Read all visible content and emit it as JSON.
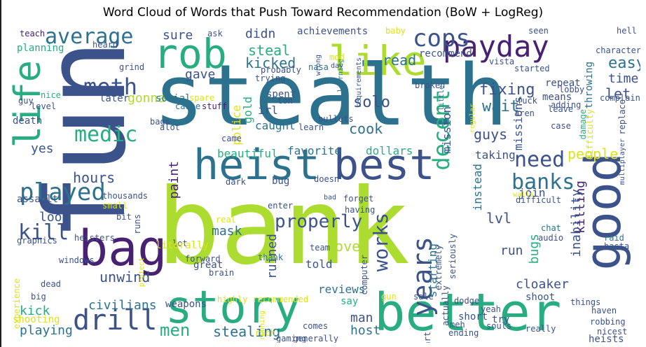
{
  "title": "Word Cloud of Words that Push Toward Recommendation (BoW + LogReg)",
  "colors": {
    "purple": "#482173",
    "indigo": "#3b528b",
    "teal": "#2c728e",
    "green": "#27ad81",
    "lime": "#b5de2b",
    "yellowgreen": "#addc30",
    "pale": "#dde318"
  },
  "words": [
    "fun",
    "bank",
    "stealth",
    "heist",
    "best",
    "better",
    "story",
    "bag",
    "good",
    "rob",
    "like",
    "payday",
    "life",
    "cops",
    "played",
    "drill",
    "meth",
    "average",
    "medic",
    "banks",
    "need",
    "kill",
    "years",
    "decent",
    "properly",
    "works",
    "men",
    "unwind",
    "civilians",
    "stealing",
    "playing",
    "kick",
    "look",
    "hours",
    "paint",
    "steal",
    "kicked",
    "fixing",
    "wait",
    "lvl",
    "solo",
    "cook",
    "gonna",
    "gave",
    "sure",
    "didn",
    "read",
    "achievements",
    "recommend",
    "easy",
    "time",
    "let",
    "people",
    "killing",
    "love",
    "ruined",
    "told",
    "man",
    "host",
    "reviews",
    "say",
    "yes",
    "mask",
    "bugs",
    "inability",
    "missions",
    "mission",
    "instead",
    "dollars",
    "beautiful",
    "favorite",
    "caught",
    "irl",
    "police",
    "gold",
    "spent",
    "later",
    "social",
    "cause",
    "stuff",
    "level",
    "guy",
    "teach",
    "planning",
    "heard",
    "ask",
    "nasa",
    "baby",
    "seen",
    "hell",
    "character",
    "complain",
    "means",
    "repeat",
    "throwing",
    "adding",
    "damage",
    "difficulty",
    "replace",
    "multiplayer",
    "case",
    "leave",
    "fuck",
    "aren",
    "little",
    "regular",
    "requirements",
    "learning",
    "wrong",
    "day",
    "probably",
    "trying",
    "grind",
    "nice",
    "death",
    "alot",
    "bags",
    "spare",
    "ton",
    "bullets",
    "learn",
    "came",
    "join",
    "difficult",
    "chat",
    "audio",
    "raid",
    "hasta",
    "seriously",
    "bug",
    "walls",
    "doesn",
    "forget",
    "having",
    "bad",
    "thousands",
    "assault",
    "small",
    "bit",
    "runs",
    "graphics",
    "heisters",
    "enter",
    "real",
    "lot",
    "literally",
    "thank",
    "great",
    "forward",
    "brain",
    "team",
    "computer",
    "extremely",
    "actually",
    "sale",
    "gun",
    "dodge",
    "yeah",
    "things",
    "shoot",
    "cloaker",
    "souls",
    "highly recommended",
    "weapons",
    "protect",
    "windows",
    "dead",
    "big",
    "experience",
    "shooting",
    "rich",
    "gaming",
    "generally",
    "running",
    "comes",
    "start",
    "ending",
    "meh",
    "short",
    "try",
    "really",
    "robbing",
    "nicest",
    "heists",
    "haven",
    "starting",
    "run",
    "taking",
    "guys",
    "lobby",
    "broken",
    "started",
    "vista",
    "mod",
    "dark"
  ]
}
